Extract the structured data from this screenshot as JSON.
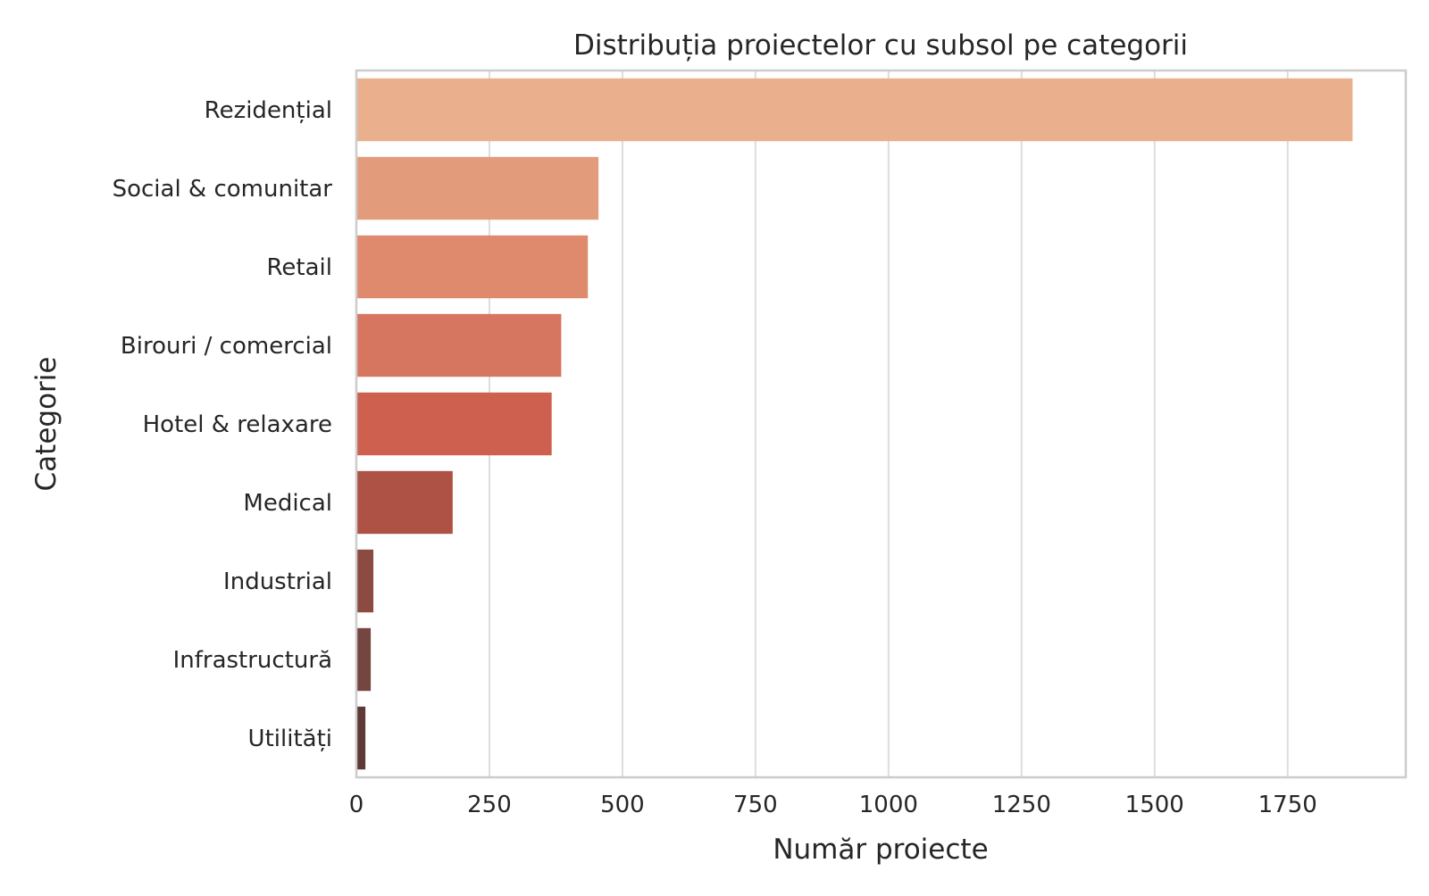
{
  "chart_data": {
    "type": "bar",
    "orientation": "horizontal",
    "title": "Distribuția proiectelor cu subsol pe categorii",
    "xlabel": "Număr proiecte",
    "ylabel": "Categorie",
    "categories": [
      "Rezidențial",
      "Social & comunitar",
      "Retail",
      "Birouri / comercial",
      "Hotel & relaxare",
      "Medical",
      "Industrial",
      "Infrastructură",
      "Utilități"
    ],
    "values": [
      1872,
      455,
      435,
      385,
      367,
      181,
      32,
      27,
      17
    ],
    "colors": [
      "#eab08d",
      "#e39c7b",
      "#df8a6d",
      "#d67560",
      "#ce604f",
      "#ad5244",
      "#8c4b42",
      "#754540",
      "#5d3a36"
    ],
    "xlim": [
      0,
      1972
    ],
    "xticks": [
      0,
      250,
      500,
      750,
      1000,
      1250,
      1500,
      1750
    ],
    "grid": true,
    "legend": "none"
  }
}
